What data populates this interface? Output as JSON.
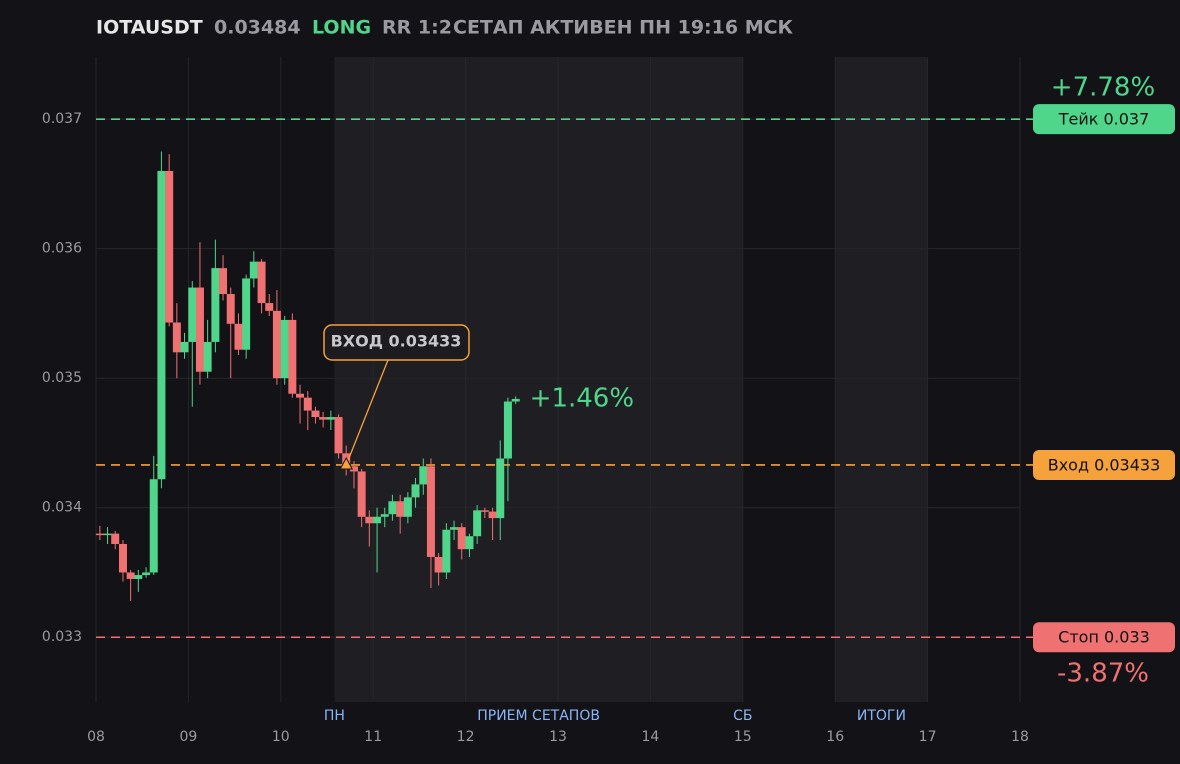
{
  "header": {
    "ticker": "IOTAUSDT",
    "price": "0.03484",
    "side": "LONG",
    "rr": "RR 1:2",
    "status": "СЕТАП АКТИВЕН ПН 19:16 МСК"
  },
  "chart_data": {
    "type": "candlestick",
    "x": [
      8.042,
      8.125,
      8.208,
      8.292,
      8.375,
      8.458,
      8.542,
      8.625,
      8.708,
      8.792,
      8.875,
      8.958,
      9.042,
      9.125,
      9.208,
      9.292,
      9.375,
      9.458,
      9.542,
      9.625,
      9.708,
      9.792,
      9.875,
      9.958,
      10.042,
      10.125,
      10.208,
      10.292,
      10.375,
      10.458,
      10.542,
      10.625,
      10.708,
      10.792,
      10.875,
      10.958,
      11.042,
      11.125,
      11.208,
      11.292,
      11.375,
      11.458,
      11.542,
      11.625,
      11.708,
      11.792,
      11.875,
      11.958,
      12.042,
      12.125,
      12.208,
      12.292,
      12.375,
      12.458,
      12.542
    ],
    "open": [
      0.0338,
      0.03379,
      0.0338,
      0.03372,
      0.0335,
      0.03345,
      0.03348,
      0.0335,
      0.03422,
      0.0366,
      0.03543,
      0.0352,
      0.03528,
      0.0357,
      0.03505,
      0.03528,
      0.03585,
      0.03565,
      0.03542,
      0.03522,
      0.03577,
      0.0359,
      0.03558,
      0.03552,
      0.035,
      0.03545,
      0.03488,
      0.03485,
      0.03475,
      0.0347,
      0.03468,
      0.0347,
      0.03442,
      0.03432,
      0.03428,
      0.03393,
      0.03388,
      0.03393,
      0.03395,
      0.03405,
      0.03393,
      0.03408,
      0.03418,
      0.03432,
      0.03362,
      0.0335,
      0.03383,
      0.03385,
      0.03368,
      0.03378,
      0.03398,
      0.03397,
      0.03392,
      0.03438,
      0.03482
    ],
    "high": [
      0.03386,
      0.03385,
      0.03382,
      0.03375,
      0.03352,
      0.03352,
      0.03354,
      0.0344,
      0.03675,
      0.03673,
      0.03558,
      0.03535,
      0.03575,
      0.03605,
      0.03545,
      0.03607,
      0.03595,
      0.0357,
      0.0355,
      0.0358,
      0.03598,
      0.03592,
      0.03565,
      0.03568,
      0.03548,
      0.0355,
      0.03495,
      0.0349,
      0.03478,
      0.03474,
      0.03475,
      0.03472,
      0.03448,
      0.03436,
      0.0343,
      0.03398,
      0.034,
      0.034,
      0.0341,
      0.0341,
      0.03412,
      0.03423,
      0.03438,
      0.03438,
      0.03365,
      0.03388,
      0.0339,
      0.03388,
      0.0338,
      0.03402,
      0.034,
      0.034,
      0.03452,
      0.03485,
      0.03486
    ],
    "low": [
      0.03375,
      0.03372,
      0.03368,
      0.03343,
      0.03328,
      0.03335,
      0.03346,
      0.03348,
      0.03415,
      0.0354,
      0.035,
      0.03515,
      0.03478,
      0.03495,
      0.035,
      0.0352,
      0.0356,
      0.035,
      0.03518,
      0.03515,
      0.0357,
      0.0355,
      0.03548,
      0.03495,
      0.03495,
      0.03485,
      0.03465,
      0.0346,
      0.03465,
      0.03462,
      0.0346,
      0.03438,
      0.03425,
      0.03415,
      0.03385,
      0.0337,
      0.0335,
      0.03385,
      0.0339,
      0.0338,
      0.03388,
      0.034,
      0.0341,
      0.03338,
      0.0334,
      0.03345,
      0.03375,
      0.0336,
      0.03362,
      0.03372,
      0.03392,
      0.03375,
      0.03375,
      0.03405,
      0.0348
    ],
    "close": [
      0.03379,
      0.0338,
      0.03372,
      0.0335,
      0.03345,
      0.03348,
      0.0335,
      0.03422,
      0.0366,
      0.03543,
      0.0352,
      0.03528,
      0.0357,
      0.03505,
      0.03528,
      0.03585,
      0.03565,
      0.03542,
      0.03522,
      0.03577,
      0.0359,
      0.03558,
      0.03552,
      0.035,
      0.03545,
      0.03488,
      0.03485,
      0.03475,
      0.0347,
      0.03468,
      0.0347,
      0.03442,
      0.03432,
      0.03428,
      0.03393,
      0.03388,
      0.03393,
      0.03395,
      0.03405,
      0.03393,
      0.03408,
      0.03418,
      0.03432,
      0.03362,
      0.0335,
      0.03383,
      0.03385,
      0.03368,
      0.03378,
      0.03398,
      0.03397,
      0.03392,
      0.03438,
      0.03482,
      0.03484
    ],
    "up_color": "#4fd68b",
    "down_color": "#f07171",
    "xlim": [
      8,
      18
    ],
    "xticks": [
      {
        "value": 8,
        "label": "08"
      },
      {
        "value": 9,
        "label": "09"
      },
      10,
      11,
      12,
      13,
      14,
      15,
      16,
      17,
      18
    ],
    "ylim": [
      0.0325,
      0.03748
    ],
    "yticks": [
      0.033,
      0.034,
      0.035,
      0.036,
      0.037
    ],
    "grid": true,
    "sessions": [
      {
        "start": 10.58,
        "end": 15,
        "label": "ПРИЕМ СЕТАПОВ"
      },
      {
        "start": 16,
        "end": 17,
        "label": "ИТОГИ"
      }
    ],
    "day_markers": [
      {
        "x": 10.58,
        "label": "ПН"
      },
      {
        "x": 15,
        "label": "СБ"
      }
    ],
    "levels": [
      {
        "value": 0.037,
        "label": "Тейк 0.037",
        "color": "#4fd68b",
        "pct": "+7.78%"
      },
      {
        "value": 0.03433,
        "label": "Вход 0.03433",
        "color": "#f5a13c"
      },
      {
        "value": 0.033,
        "label": "Стоп 0.033",
        "color": "#f07171",
        "pct": "-3.87%"
      }
    ],
    "entry_marker": {
      "x": 10.708,
      "y": 0.03433,
      "label": "ВХОД 0.03433"
    },
    "current_change": "+1.46%"
  }
}
